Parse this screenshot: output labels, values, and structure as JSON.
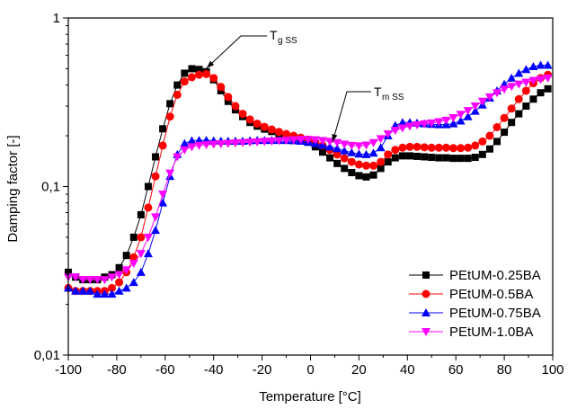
{
  "chart_data": {
    "type": "line",
    "title": "",
    "xlabel": "Temperature [°C]",
    "ylabel": "Damping factor [-]",
    "xlim": [
      -100,
      100
    ],
    "ylim": [
      0.01,
      1
    ],
    "yscale": "log",
    "x_ticks": [
      -100,
      -80,
      -60,
      -40,
      -20,
      0,
      20,
      40,
      60,
      80,
      100
    ],
    "x_tick_labels": [
      "-100",
      "-80",
      "-60",
      "-40",
      "-20",
      "0",
      "20",
      "40",
      "60",
      "80",
      "100"
    ],
    "y_ticks": [
      0.01,
      0.1,
      1
    ],
    "y_tick_labels": [
      "0,01",
      "0,1",
      "1"
    ],
    "grid": false,
    "legend_position": "bottom-right",
    "annotations": [
      {
        "main": "T",
        "sub": "g SS",
        "points_to": {
          "x": -44,
          "y": 0.48
        }
      },
      {
        "main": "T",
        "sub": "m SS",
        "points_to": {
          "x": 8,
          "y": 0.175
        }
      }
    ],
    "series": [
      {
        "name": "PEtUM-0.25BA",
        "color": "#000000",
        "marker": "square",
        "x": [
          -100,
          -97,
          -94,
          -91,
          -88,
          -85,
          -82,
          -79,
          -76,
          -73,
          -70,
          -67,
          -64,
          -61,
          -58,
          -55,
          -52,
          -49,
          -46,
          -43,
          -40,
          -37,
          -34,
          -31,
          -28,
          -25,
          -22,
          -19,
          -16,
          -13,
          -10,
          -7,
          -4,
          -1,
          2,
          5,
          8,
          11,
          14,
          17,
          20,
          23,
          26,
          29,
          32,
          35,
          38,
          41,
          44,
          47,
          50,
          53,
          56,
          59,
          62,
          65,
          68,
          71,
          74,
          77,
          80,
          83,
          86,
          89,
          92,
          95,
          98
        ],
        "values": [
          0.031,
          0.029,
          0.028,
          0.028,
          0.028,
          0.029,
          0.03,
          0.033,
          0.039,
          0.05,
          0.068,
          0.1,
          0.15,
          0.22,
          0.31,
          0.4,
          0.47,
          0.5,
          0.495,
          0.48,
          0.43,
          0.37,
          0.32,
          0.285,
          0.26,
          0.24,
          0.228,
          0.219,
          0.212,
          0.206,
          0.2,
          0.195,
          0.19,
          0.183,
          0.172,
          0.16,
          0.148,
          0.137,
          0.128,
          0.121,
          0.116,
          0.114,
          0.117,
          0.128,
          0.14,
          0.148,
          0.152,
          0.152,
          0.151,
          0.15,
          0.149,
          0.148,
          0.148,
          0.147,
          0.147,
          0.147,
          0.149,
          0.155,
          0.167,
          0.185,
          0.21,
          0.24,
          0.27,
          0.3,
          0.33,
          0.36,
          0.38
        ]
      },
      {
        "name": "PEtUM-0.5BA",
        "color": "#ff0000",
        "marker": "circle",
        "x": [
          -100,
          -97,
          -94,
          -91,
          -88,
          -85,
          -82,
          -79,
          -76,
          -73,
          -70,
          -67,
          -64,
          -61,
          -58,
          -55,
          -52,
          -49,
          -46,
          -43,
          -40,
          -37,
          -34,
          -31,
          -28,
          -25,
          -22,
          -19,
          -16,
          -13,
          -10,
          -7,
          -4,
          -1,
          2,
          5,
          8,
          11,
          14,
          17,
          20,
          23,
          26,
          29,
          32,
          35,
          38,
          41,
          44,
          47,
          50,
          53,
          56,
          59,
          62,
          65,
          68,
          71,
          74,
          77,
          80,
          83,
          86,
          89,
          92,
          95,
          98
        ],
        "values": [
          0.025,
          0.024,
          0.024,
          0.024,
          0.024,
          0.024,
          0.025,
          0.027,
          0.031,
          0.038,
          0.05,
          0.075,
          0.115,
          0.175,
          0.26,
          0.35,
          0.42,
          0.445,
          0.46,
          0.465,
          0.44,
          0.39,
          0.34,
          0.3,
          0.27,
          0.25,
          0.236,
          0.226,
          0.218,
          0.211,
          0.205,
          0.2,
          0.195,
          0.19,
          0.183,
          0.175,
          0.165,
          0.155,
          0.147,
          0.14,
          0.135,
          0.133,
          0.133,
          0.14,
          0.155,
          0.165,
          0.17,
          0.172,
          0.172,
          0.171,
          0.17,
          0.17,
          0.17,
          0.169,
          0.169,
          0.17,
          0.175,
          0.185,
          0.2,
          0.225,
          0.255,
          0.29,
          0.33,
          0.37,
          0.41,
          0.44,
          0.46
        ]
      },
      {
        "name": "PEtUM-0.75BA",
        "color": "#0000ff",
        "marker": "triangle-up",
        "x": [
          -100,
          -97,
          -94,
          -91,
          -88,
          -85,
          -82,
          -79,
          -76,
          -73,
          -70,
          -67,
          -64,
          -61,
          -58,
          -55,
          -52,
          -49,
          -46,
          -43,
          -40,
          -37,
          -34,
          -31,
          -28,
          -25,
          -22,
          -19,
          -16,
          -13,
          -10,
          -7,
          -4,
          -1,
          2,
          5,
          8,
          11,
          14,
          17,
          20,
          23,
          26,
          29,
          32,
          35,
          38,
          41,
          44,
          47,
          50,
          53,
          56,
          59,
          62,
          65,
          68,
          71,
          74,
          77,
          80,
          83,
          86,
          89,
          92,
          95,
          98
        ],
        "values": [
          0.025,
          0.024,
          0.024,
          0.024,
          0.023,
          0.023,
          0.023,
          0.024,
          0.025,
          0.027,
          0.031,
          0.04,
          0.055,
          0.08,
          0.115,
          0.155,
          0.18,
          0.187,
          0.188,
          0.188,
          0.187,
          0.186,
          0.186,
          0.186,
          0.186,
          0.187,
          0.188,
          0.188,
          0.188,
          0.188,
          0.188,
          0.187,
          0.186,
          0.184,
          0.18,
          0.176,
          0.172,
          0.168,
          0.163,
          0.159,
          0.156,
          0.155,
          0.158,
          0.17,
          0.2,
          0.23,
          0.24,
          0.24,
          0.238,
          0.236,
          0.234,
          0.233,
          0.233,
          0.236,
          0.245,
          0.26,
          0.28,
          0.305,
          0.335,
          0.37,
          0.405,
          0.44,
          0.47,
          0.495,
          0.515,
          0.525,
          0.525
        ]
      },
      {
        "name": "PEtUM-1.0BA",
        "color": "#ff00ff",
        "marker": "triangle-down",
        "x": [
          -100,
          -97,
          -94,
          -91,
          -88,
          -85,
          -82,
          -79,
          -76,
          -73,
          -70,
          -67,
          -64,
          -61,
          -58,
          -55,
          -52,
          -49,
          -46,
          -43,
          -40,
          -37,
          -34,
          -31,
          -28,
          -25,
          -22,
          -19,
          -16,
          -13,
          -10,
          -7,
          -4,
          -1,
          2,
          5,
          8,
          11,
          14,
          17,
          20,
          23,
          26,
          29,
          32,
          35,
          38,
          41,
          44,
          47,
          50,
          53,
          56,
          59,
          62,
          65,
          68,
          71,
          74,
          77,
          80,
          83,
          86,
          89,
          92,
          95,
          98
        ],
        "values": [
          0.029,
          0.029,
          0.028,
          0.028,
          0.028,
          0.028,
          0.029,
          0.03,
          0.032,
          0.035,
          0.04,
          0.05,
          0.066,
          0.09,
          0.12,
          0.15,
          0.165,
          0.172,
          0.175,
          0.177,
          0.178,
          0.179,
          0.18,
          0.181,
          0.182,
          0.183,
          0.184,
          0.185,
          0.186,
          0.187,
          0.188,
          0.189,
          0.19,
          0.19,
          0.189,
          0.187,
          0.185,
          0.182,
          0.178,
          0.175,
          0.174,
          0.176,
          0.182,
          0.192,
          0.205,
          0.215,
          0.222,
          0.228,
          0.232,
          0.235,
          0.238,
          0.242,
          0.247,
          0.256,
          0.268,
          0.282,
          0.3,
          0.32,
          0.34,
          0.36,
          0.378,
          0.392,
          0.405,
          0.415,
          0.425,
          0.432,
          0.44
        ]
      }
    ]
  }
}
